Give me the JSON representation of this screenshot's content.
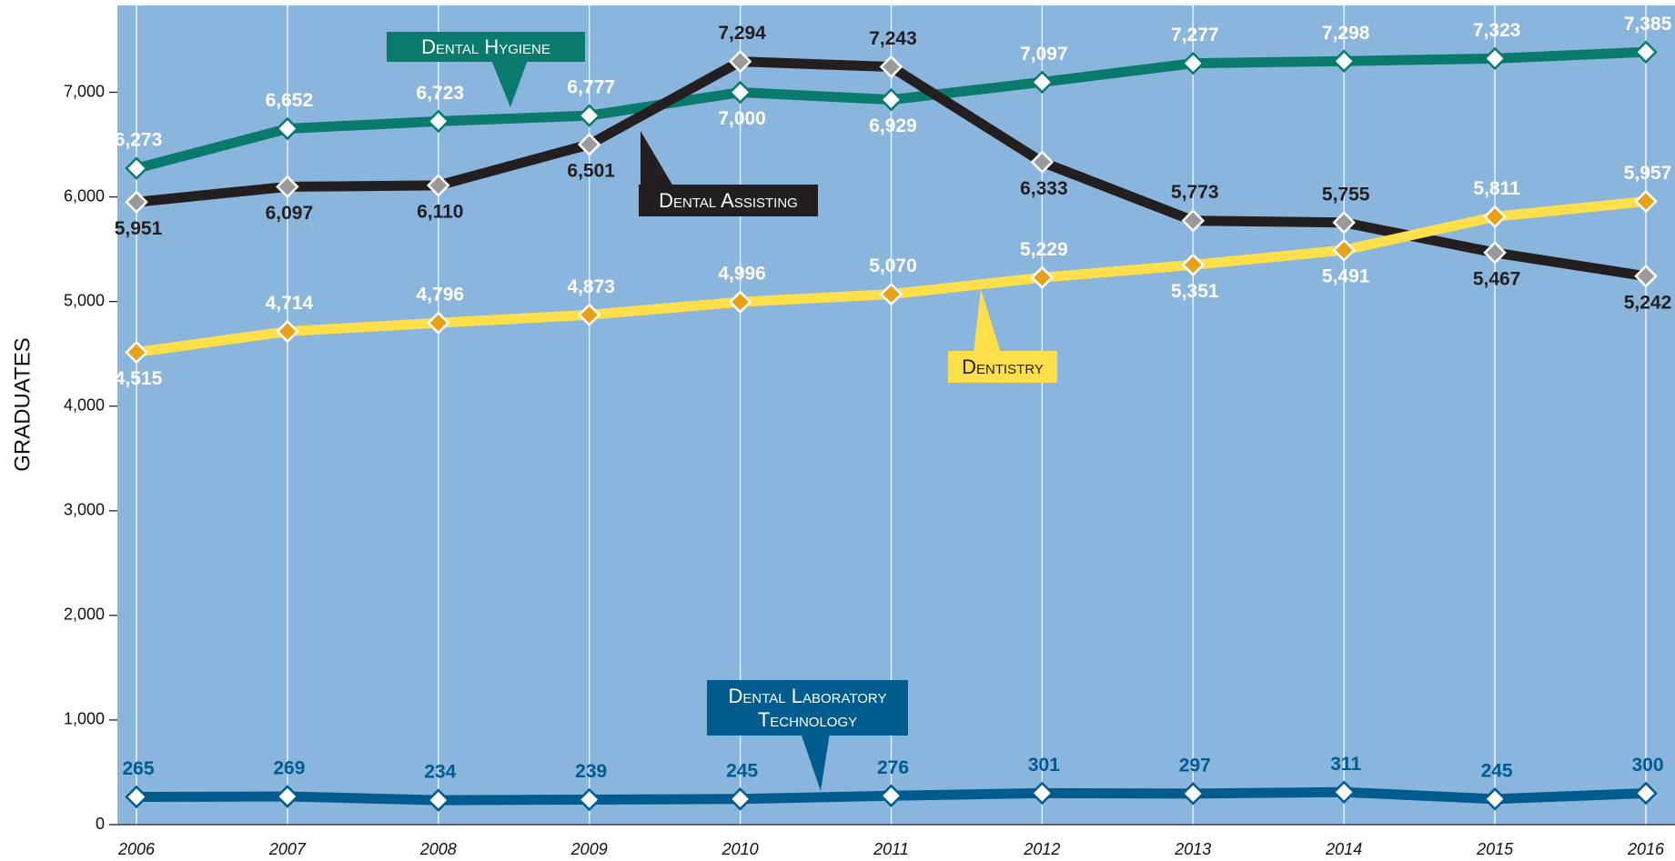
{
  "chart_data": {
    "type": "line",
    "y_label": "GRADUATES",
    "categories": [
      "2006",
      "2007",
      "2008",
      "2009",
      "2010",
      "2011",
      "2012",
      "2013",
      "2014",
      "2015",
      "2016"
    ],
    "ylim": [
      0,
      7830
    ],
    "yticks": [
      0,
      {
        "value": 1000,
        "label": "1,000"
      },
      {
        "value": 2000,
        "label": "2,000"
      },
      {
        "value": 3000,
        "label": "3,000"
      },
      {
        "value": 4000,
        "label": "4,000"
      },
      {
        "value": 5000,
        "label": "5,000"
      },
      {
        "value": 6000,
        "label": "6,000"
      },
      {
        "value": 7000,
        "label": "7,000"
      }
    ],
    "series": [
      {
        "name": "Dental Hygiene",
        "color": "#0a7a6c",
        "values": [
          6273,
          6652,
          6723,
          6777,
          7000,
          6929,
          7097,
          7277,
          7298,
          7323,
          7385
        ],
        "value_labels": [
          "6,273",
          "6,652",
          "6,723",
          "6,777",
          "7,000",
          "6,929",
          "7,097",
          "7,277",
          "7,298",
          "7,323",
          "7,385"
        ]
      },
      {
        "name": "Dental Assisting",
        "color": "#231f20",
        "values": [
          5951,
          6097,
          6110,
          6501,
          7294,
          7243,
          6333,
          5773,
          5755,
          5467,
          5242
        ],
        "value_labels": [
          "5,951",
          "6,097",
          "6,110",
          "6,501",
          "7,294",
          "7,243",
          "6,333",
          "5,773",
          "5,755",
          "5,467",
          "5,242"
        ]
      },
      {
        "name": "Dentistry",
        "color": "#ffdf4a",
        "values": [
          4515,
          4714,
          4796,
          4873,
          4996,
          5070,
          5229,
          5351,
          5491,
          5811,
          5957
        ],
        "value_labels": [
          "4,515",
          "4,714",
          "4,796",
          "4,873",
          "4,996",
          "5,070",
          "5,229",
          "5,351",
          "5,491",
          "5,811",
          "5,957"
        ]
      },
      {
        "name": "Dental Laboratory Technology",
        "color": "#005b8f",
        "values": [
          265,
          269,
          234,
          239,
          245,
          276,
          301,
          297,
          311,
          245,
          300
        ],
        "value_labels": [
          "265",
          "269",
          "234",
          "239",
          "245",
          "276",
          "301",
          "297",
          "311",
          "245",
          "300"
        ]
      }
    ]
  }
}
